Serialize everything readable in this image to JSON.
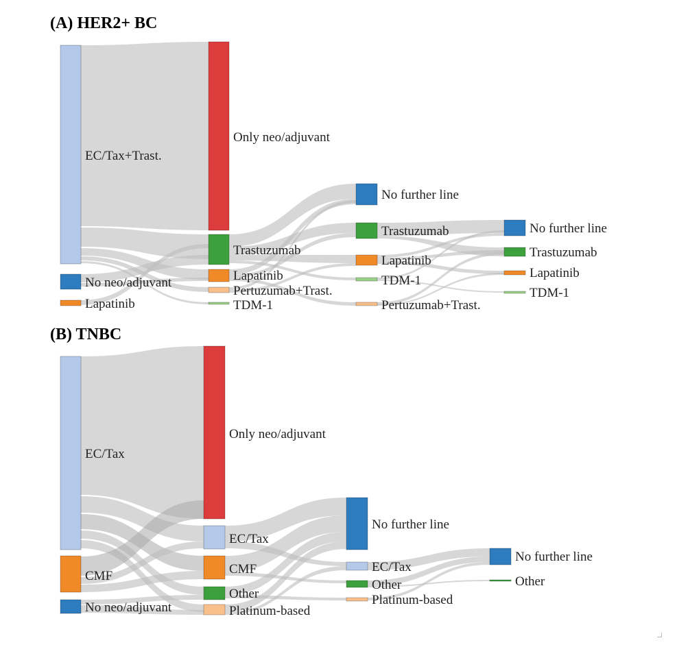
{
  "panel_a": {
    "title": "(A) HER2+ BC",
    "col0": {
      "ec_tax_trast": "EC/Tax+Trast.",
      "no_neo": "No neo/adjuvant",
      "lapatinib": "Lapatinib"
    },
    "col1": {
      "only_neo": "Only neo/adjuvant",
      "trastuzumab": "Trastuzumab",
      "lapatinib": "Lapatinib",
      "pertuzumab": "Pertuzumab+Trast.",
      "tdm1": "TDM-1"
    },
    "col2": {
      "no_further": "No further line",
      "trastuzumab": "Trastuzumab",
      "lapatinib": "Lapatinib",
      "tdm1": "TDM-1",
      "pertuzumab": "Pertuzumab+Trast."
    },
    "col3": {
      "no_further": "No further line",
      "trastuzumab": "Trastuzumab",
      "lapatinib": "Lapatinib",
      "tdm1": "TDM-1"
    }
  },
  "panel_b": {
    "title": "(B) TNBC",
    "col0": {
      "ec_tax": "EC/Tax",
      "cmf": "CMF",
      "no_neo": "No neo/adjuvant"
    },
    "col1": {
      "only_neo": "Only neo/adjuvant",
      "ec_tax": "EC/Tax",
      "cmf": "CMF",
      "other": "Other",
      "platinum": "Platinum-based"
    },
    "col2": {
      "no_further": "No further line",
      "ec_tax": "EC/Tax",
      "other": "Other",
      "platinum": "Platinum-based"
    },
    "col3": {
      "no_further": "No further line",
      "other": "Other"
    }
  },
  "colors": {
    "light_blue": "#b4c8e8",
    "red": "#dc3c3c",
    "green": "#3ca03c",
    "orange": "#f08a28",
    "blue": "#2e7cc0",
    "peach": "#f9c08c",
    "light_green": "#9ad08a",
    "link": "#bdbdbd"
  }
}
